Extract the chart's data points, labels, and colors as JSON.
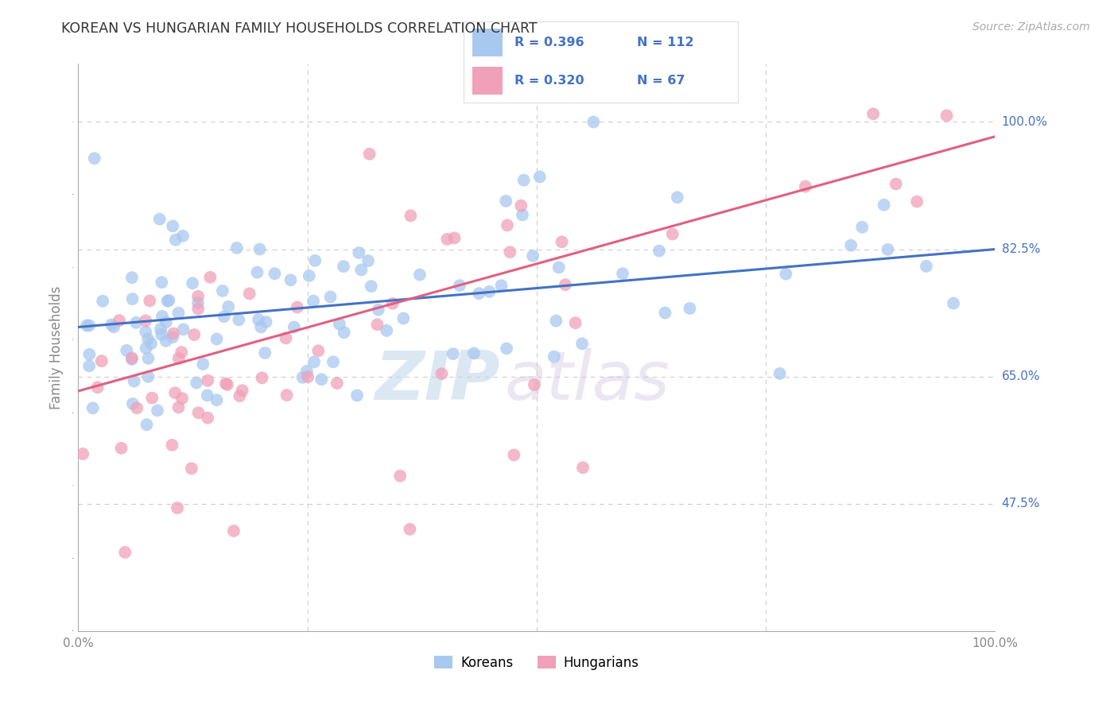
{
  "title": "KOREAN VS HUNGARIAN FAMILY HOUSEHOLDS CORRELATION CHART",
  "source": "Source: ZipAtlas.com",
  "ylabel": "Family Households",
  "ytick_labels": [
    "100.0%",
    "82.5%",
    "65.0%",
    "47.5%"
  ],
  "ytick_values": [
    1.0,
    0.825,
    0.65,
    0.475
  ],
  "xlim": [
    0.0,
    1.0
  ],
  "ylim": [
    0.3,
    1.08
  ],
  "legend_label_korean": "Koreans",
  "legend_label_hungarian": "Hungarians",
  "R_korean": 0.396,
  "N_korean": 112,
  "R_hungarian": 0.32,
  "N_hungarian": 67,
  "color_korean": "#a8c8f0",
  "color_hungarian": "#f0a0b8",
  "color_text_blue": "#4472c4",
  "trend_color_korean": "#4472c4",
  "trend_color_hungarian": "#e06080",
  "watermark_zip": "ZIP",
  "watermark_atlas": "atlas",
  "background_color": "#ffffff",
  "grid_color": "#cccccc",
  "korean_trend_start_y": 0.718,
  "korean_trend_end_y": 0.825,
  "hungarian_trend_start_y": 0.63,
  "hungarian_trend_end_y": 0.98
}
